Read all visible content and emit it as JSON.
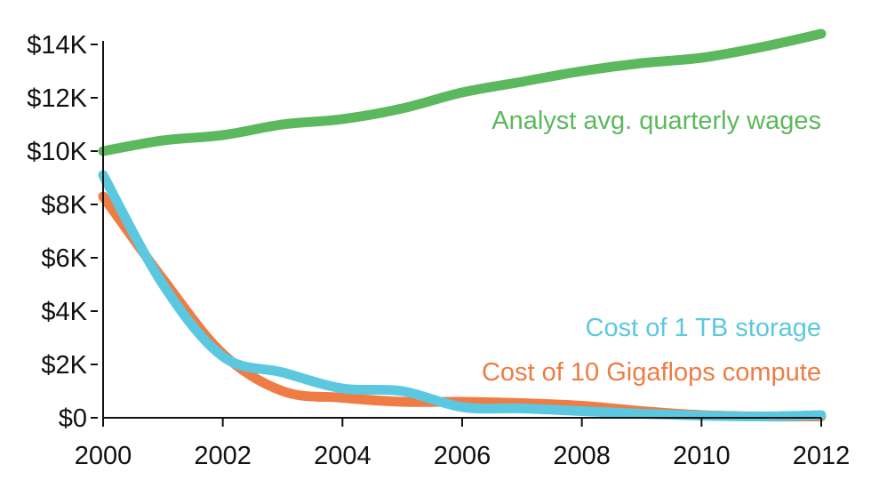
{
  "chart_data": {
    "type": "line",
    "title": "",
    "xlabel": "",
    "ylabel": "",
    "x": [
      2000,
      2001,
      2002,
      2003,
      2004,
      2005,
      2006,
      2007,
      2008,
      2009,
      2010,
      2011,
      2012
    ],
    "xlim": [
      2000,
      2012
    ],
    "ylim": [
      0,
      14000
    ],
    "x_ticks": [
      {
        "value": 2000,
        "label": "2000"
      },
      {
        "value": 2002,
        "label": "2002"
      },
      {
        "value": 2004,
        "label": "2004"
      },
      {
        "value": 2006,
        "label": "2006"
      },
      {
        "value": 2008,
        "label": "2008"
      },
      {
        "value": 2010,
        "label": "2010"
      },
      {
        "value": 2012,
        "label": "2012"
      }
    ],
    "y_ticks": [
      {
        "value": 0,
        "label": "$0"
      },
      {
        "value": 2000,
        "label": "$2K"
      },
      {
        "value": 4000,
        "label": "$4K"
      },
      {
        "value": 6000,
        "label": "$6K"
      },
      {
        "value": 8000,
        "label": "$8K"
      },
      {
        "value": 10000,
        "label": "$10K"
      },
      {
        "value": 12000,
        "label": "$12K"
      },
      {
        "value": 14000,
        "label": "$14K"
      }
    ],
    "grid": false,
    "legend": "direct labels",
    "series": [
      {
        "name": "Analyst avg. quarterly wages",
        "color": "#5cb85c",
        "values": [
          10000,
          10400,
          10600,
          11000,
          11200,
          11600,
          12200,
          12600,
          13000,
          13300,
          13500,
          13900,
          14400
        ]
      },
      {
        "name": "Cost of 1 TB storage",
        "color": "#5bc8e0",
        "values": [
          9100,
          5000,
          2300,
          1700,
          1100,
          1000,
          400,
          350,
          250,
          150,
          80,
          50,
          100
        ]
      },
      {
        "name": "Cost of 10 Gigaflops compute",
        "color": "#ee7c44",
        "values": [
          8300,
          5200,
          2400,
          1000,
          750,
          600,
          600,
          550,
          450,
          250,
          100,
          50,
          50
        ]
      }
    ]
  }
}
